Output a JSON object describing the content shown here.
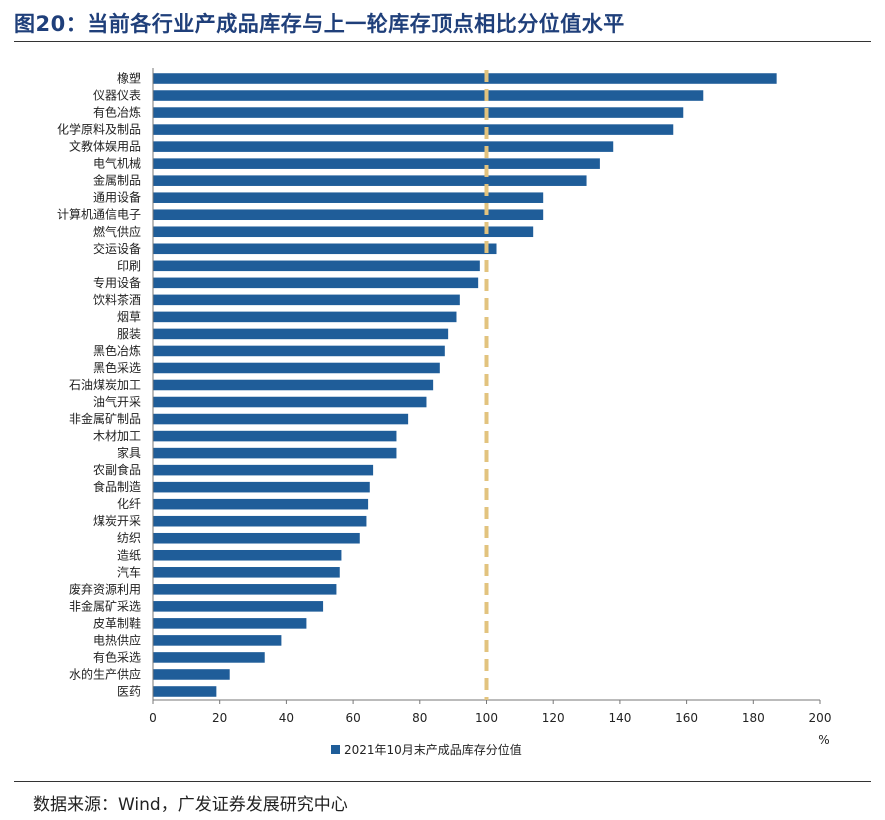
{
  "title": "图20：当前各行业产成品库存与上一轮库存顶点相比分位值水平",
  "source": "数据来源：Wind，广发证券发展研究中心",
  "chart_data": {
    "type": "bar",
    "orientation": "horizontal",
    "categories": [
      "橡塑",
      "仪器仪表",
      "有色冶炼",
      "化学原料及制品",
      "文教体娱用品",
      "电气机械",
      "金属制品",
      "通用设备",
      "计算机通信电子",
      "燃气供应",
      "交运设备",
      "印刷",
      "专用设备",
      "饮料茶酒",
      "烟草",
      "服装",
      "黑色冶炼",
      "黑色采选",
      "石油煤炭加工",
      "油气开采",
      "非金属矿制品",
      "木材加工",
      "家具",
      "农副食品",
      "食品制造",
      "化纤",
      "煤炭开采",
      "纺织",
      "造纸",
      "汽车",
      "废弃资源利用",
      "非金属矿采选",
      "皮革制鞋",
      "电热供应",
      "有色采选",
      "水的生产供应",
      "医药"
    ],
    "series": [
      {
        "name": "2021年10月末产成品库存分位值",
        "values": [
          187,
          165,
          159,
          156,
          138,
          134,
          130,
          117,
          117,
          114,
          103,
          98,
          97.5,
          92,
          91,
          88.5,
          87.5,
          86,
          84,
          82,
          76.5,
          73,
          73,
          66,
          65,
          64.5,
          64,
          62,
          56.5,
          56,
          55,
          51,
          46,
          38.5,
          33.5,
          23,
          19
        ]
      }
    ],
    "xlim": [
      0,
      200
    ],
    "xticks": [
      0,
      20,
      40,
      60,
      80,
      100,
      120,
      140,
      160,
      180,
      200
    ],
    "xlabel": "%",
    "reference_line": 100,
    "colors": {
      "bar": "#1f5d99",
      "reference": "#e2c37e"
    }
  }
}
